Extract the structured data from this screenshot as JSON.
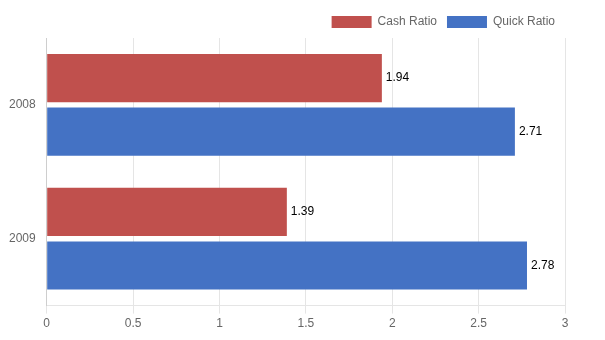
{
  "chart_data": {
    "type": "bar",
    "orientation": "horizontal",
    "categories": [
      "2008",
      "2009"
    ],
    "series": [
      {
        "name": "Cash Ratio",
        "color": "#C0504D",
        "values": [
          1.94,
          1.39
        ]
      },
      {
        "name": "Quick Ratio",
        "color": "#4472C4",
        "values": [
          2.71,
          2.78
        ]
      }
    ],
    "xlim": [
      0,
      3.0
    ],
    "xticks": [
      0,
      0.5,
      1,
      1.5,
      2,
      2.5,
      3
    ],
    "grid": true,
    "legend": "upper right",
    "data_labels": true
  }
}
